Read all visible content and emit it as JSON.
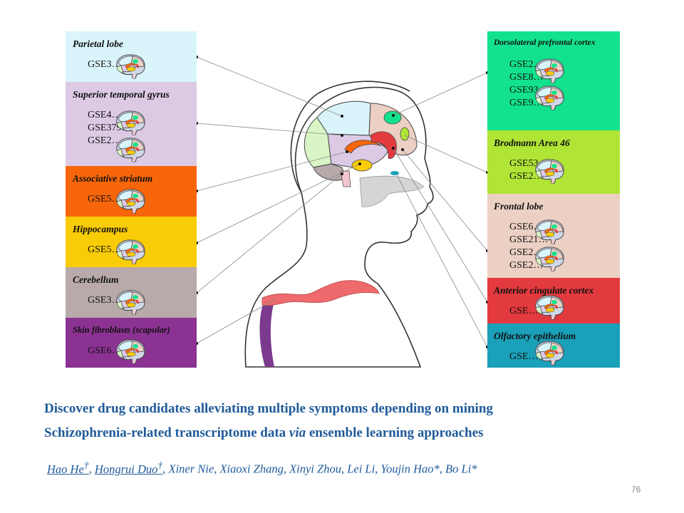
{
  "left_panels": [
    {
      "name": "parietal-lobe",
      "title": "Parietal lobe",
      "codes": [
        "GSE3…"
      ],
      "color": "#d9f5fb"
    },
    {
      "name": "superior-temporal-gyrus",
      "title": "Superior temporal gyrus",
      "codes": [
        "GSE4…",
        "GSE379…",
        "GSE2…"
      ],
      "color": "#dccae5"
    },
    {
      "name": "associative-striatum",
      "title": "Associative striatum",
      "codes": [
        "GSE5…"
      ],
      "color": "#f7660a"
    },
    {
      "name": "hippocampus",
      "title": "Hippocampus",
      "codes": [
        "GSE5…"
      ],
      "color": "#f8cc06"
    },
    {
      "name": "cerebellum",
      "title": "Cerebellum",
      "codes": [
        "GSE3…"
      ],
      "color": "#b8aaaa"
    },
    {
      "name": "skin-fibroblasts",
      "title": "Skin fibroblasts (scapular)",
      "codes": [
        "GSE6…"
      ],
      "color": "#8b3292"
    }
  ],
  "right_panels": [
    {
      "name": "dorsolateral-prefrontal-cortex",
      "title": "Dorsolateral prefrontal cortex",
      "codes": [
        "GSE2…",
        "GSE8…",
        "GSE93…",
        "GSE9…"
      ],
      "color": "#12e28d"
    },
    {
      "name": "brodmann-area-46",
      "title": "Brodmann Area 46",
      "codes": [
        "GSE53…",
        "GSE2…"
      ],
      "color": "#b0e435"
    },
    {
      "name": "frontal-lobe",
      "title": "Frontal lobe",
      "codes": [
        "GSE6…",
        "GSE21…",
        "GSE2…",
        "GSE2…"
      ],
      "color": "#ecd0c4"
    },
    {
      "name": "anterior-cingulate-cortex",
      "title": "Anterior cingulate cortex",
      "codes": [
        "GSE…"
      ],
      "color": "#e23a3e"
    },
    {
      "name": "olfactory-epithelium",
      "title": "Olfactory epithelium",
      "codes": [
        "GSE…"
      ],
      "color": "#1aa0b8"
    }
  ],
  "headline": {
    "line1": "Discover drug candidates alleviating multiple symptoms depending on mining",
    "line2_a": "Schizophrenia-related transcriptome data ",
    "line2_via": "via",
    "line2_b": " ensemble learning approaches"
  },
  "authors": {
    "a1": "Hao He",
    "a2": "Hongrui Duo",
    "dagger": "†",
    "sep": ", ",
    "rest": "Xiner Nie, Xiaoxi Zhang, Xinyi Zhou, Lei Li, Youjin Hao*, Bo Li*"
  },
  "page_number": "76"
}
